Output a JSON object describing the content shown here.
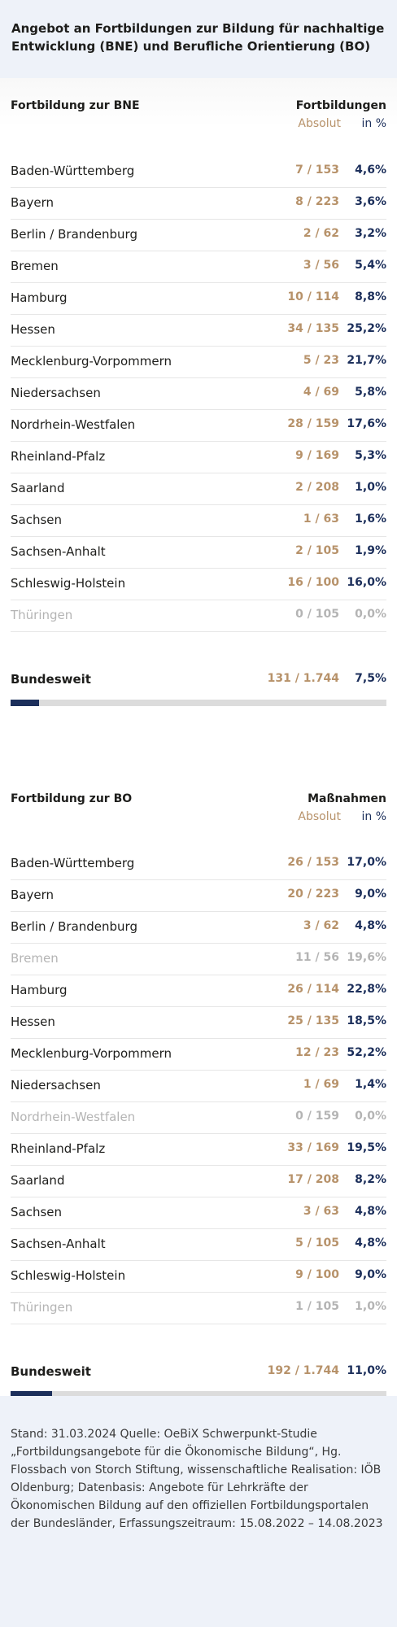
{
  "header": {
    "title": "Angebot an Fortbildungen zur Bildung für nachhaltige Entwicklung (BNE) und Berufliche Orientierung (BO)"
  },
  "sections": [
    {
      "title": "Fortbildung zur BNE",
      "col_title": "Fortbildungen",
      "sub_abs": "Absolut",
      "sub_pct": "in %",
      "rows": [
        {
          "name": "Baden-Württemberg",
          "abs": "7 / 153",
          "pct": "4,6%"
        },
        {
          "name": "Bayern",
          "abs": "8 / 223",
          "pct": "3,6%"
        },
        {
          "name": "Berlin / Brandenburg",
          "abs": "2 /   62",
          "pct": "3,2%"
        },
        {
          "name": "Bremen",
          "abs": "3 /   56",
          "pct": "5,4%"
        },
        {
          "name": "Hamburg",
          "abs": "10 / 114",
          "pct": "8,8%"
        },
        {
          "name": "Hessen",
          "abs": "34 / 135",
          "pct": "25,2%"
        },
        {
          "name": "Mecklenburg-Vorpommern",
          "abs": "5 /   23",
          "pct": "21,7%"
        },
        {
          "name": "Niedersachsen",
          "abs": "4 /   69",
          "pct": "5,8%"
        },
        {
          "name": "Nordrhein-Westfalen",
          "abs": "28 / 159",
          "pct": "17,6%"
        },
        {
          "name": "Rheinland-Pfalz",
          "abs": "9 / 169",
          "pct": "5,3%"
        },
        {
          "name": "Saarland",
          "abs": "2 / 208",
          "pct": "1,0%"
        },
        {
          "name": "Sachsen",
          "abs": "1 /   63",
          "pct": "1,6%"
        },
        {
          "name": "Sachsen-Anhalt",
          "abs": "2 / 105",
          "pct": "1,9%"
        },
        {
          "name": "Schleswig-Holstein",
          "abs": "16 / 100",
          "pct": "16,0%"
        },
        {
          "name": "Thüringen",
          "abs": "0 / 105",
          "pct": "0,0%",
          "dim": true
        }
      ],
      "total": {
        "name": "Bundesweit",
        "abs": "131 / 1.744",
        "pct": "7,5%",
        "fraction": 0.075
      }
    },
    {
      "title": "Fortbildung zur BO",
      "col_title": "Maßnahmen",
      "sub_abs": "Absolut",
      "sub_pct": "in %",
      "rows": [
        {
          "name": "Baden-Württemberg",
          "abs": "26 / 153",
          "pct": "17,0%"
        },
        {
          "name": "Bayern",
          "abs": "20 / 223",
          "pct": "9,0%"
        },
        {
          "name": "Berlin / Brandenburg",
          "abs": "3 /   62",
          "pct": "4,8%"
        },
        {
          "name": "Bremen",
          "abs": "11 /   56",
          "pct": "19,6%",
          "dim": true
        },
        {
          "name": "Hamburg",
          "abs": "26 / 114",
          "pct": "22,8%"
        },
        {
          "name": "Hessen",
          "abs": "25 / 135",
          "pct": "18,5%"
        },
        {
          "name": "Mecklenburg-Vorpommern",
          "abs": "12 /   23",
          "pct": "52,2%"
        },
        {
          "name": "Niedersachsen",
          "abs": "1 /   69",
          "pct": "1,4%"
        },
        {
          "name": "Nordrhein-Westfalen",
          "abs": "0 / 159",
          "pct": "0,0%",
          "dim": true
        },
        {
          "name": "Rheinland-Pfalz",
          "abs": "33 / 169",
          "pct": "19,5%"
        },
        {
          "name": "Saarland",
          "abs": "17 / 208",
          "pct": "8,2%"
        },
        {
          "name": "Sachsen",
          "abs": "3 /   63",
          "pct": "4,8%"
        },
        {
          "name": "Sachsen-Anhalt",
          "abs": "5 / 105",
          "pct": "4,8%"
        },
        {
          "name": "Schleswig-Holstein",
          "abs": "9 / 100",
          "pct": "9,0%"
        },
        {
          "name": "Thüringen",
          "abs": "1 / 105",
          "pct": "1,0%",
          "dim": true
        }
      ],
      "total": {
        "name": "Bundesweit",
        "abs": "192 / 1.744",
        "pct": "11,0%",
        "fraction": 0.11
      }
    }
  ],
  "footer": {
    "text": "Stand: 31.03.2024 Quelle: OeBiX Schwerpunkt-Studie „Fortbildungsangebote für die Ökonomische Bildung“, Hg. Flossbach von Storch Stiftung, wissenschaftliche Realisation: IÖB Oldenburg; Datenbasis: Angebote für Lehrkräfte der Ökonomischen Bildung auf den offiziellen Fortbildungsportalen der Bundesländer, Erfassungszeitraum: 15.08.2022 – 14.08.2023"
  },
  "colors": {
    "accent_navy": "#1c2f5b",
    "accent_gold": "#b7926a",
    "dim_gray": "#b4b4b4",
    "header_bg": "#eef2f9"
  }
}
